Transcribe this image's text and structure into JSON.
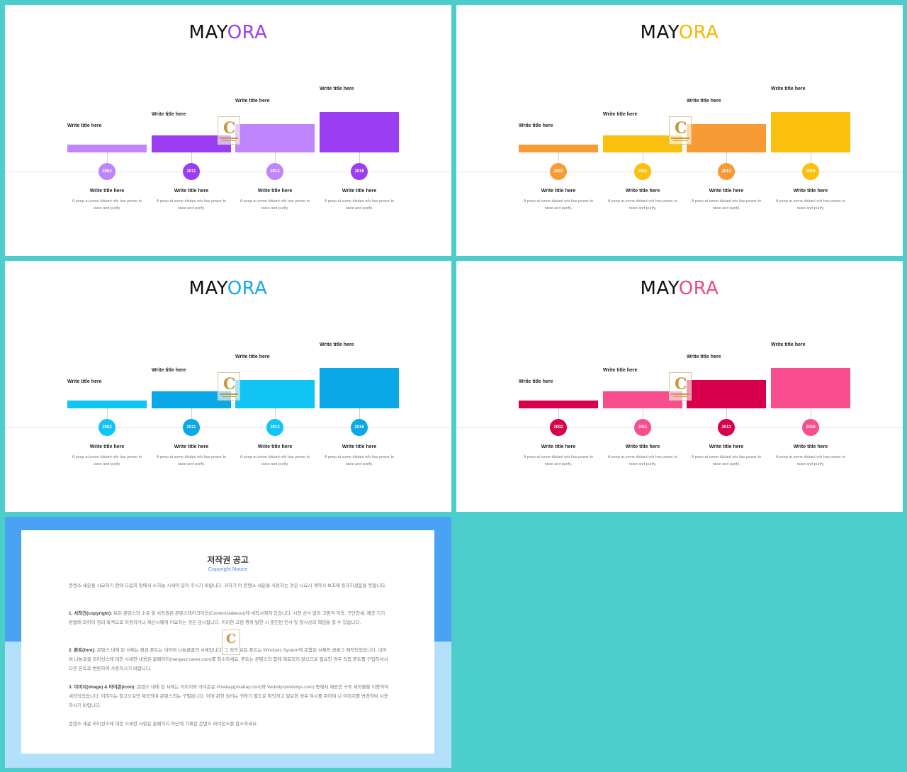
{
  "slides": [
    {
      "brand_prefix": "MAY",
      "brand_suffix": "ORA",
      "accent": "#9b3df2",
      "bar_titles": [
        "Write title here",
        "Write title here",
        "Write title here",
        "Write title here"
      ],
      "bar_colors": [
        "#c084fc",
        "#9b3df2",
        "#c084fc",
        "#9b3df2"
      ],
      "years": [
        "2002",
        "2011",
        "2013",
        "2016"
      ],
      "item_titles": [
        "Write title here",
        "Write title here",
        "Write title here",
        "Write title here"
      ],
      "item_desc": [
        "A peep at some distant orb has power to raise and purify.",
        "A peep at some distant orb has power to raise and purify.",
        "A peep at some distant orb has power to raise and purify.",
        "A peep at some distant orb has power to raise and purify."
      ]
    },
    {
      "brand_prefix": "MAY",
      "brand_suffix": "ORA",
      "accent": "#f5b800",
      "bar_titles": [
        "Write title here",
        "Write title here",
        "Write title here",
        "Write title here"
      ],
      "bar_colors": [
        "#f99b35",
        "#fbbf0e",
        "#f99b35",
        "#fbbf0e"
      ],
      "years": [
        "2002",
        "2011",
        "2013",
        "2016"
      ],
      "item_titles": [
        "Write title here",
        "Write title here",
        "Write title here",
        "Write title here"
      ],
      "item_desc": [
        "A peep at some distant orb has power to raise and purify.",
        "A peep at some distant orb has power to raise and purify.",
        "A peep at some distant orb has power to raise and purify.",
        "A peep at some distant orb has power to raise and purify."
      ]
    },
    {
      "brand_prefix": "MAY",
      "brand_suffix": "ORA",
      "accent": "#1aa8e6",
      "bar_titles": [
        "Write title here",
        "Write title here",
        "Write title here",
        "Write title here"
      ],
      "bar_colors": [
        "#10c4f5",
        "#0aa8e6",
        "#10c4f5",
        "#0aa8e6"
      ],
      "years": [
        "2002",
        "2011",
        "2013",
        "2016"
      ],
      "item_titles": [
        "Write title here",
        "Write title here",
        "Write title here",
        "Write title here"
      ],
      "item_desc": [
        "A peep at some distant orb has power to raise and purify.",
        "A peep at some distant orb has power to raise and purify.",
        "A peep at some distant orb has power to raise and purify.",
        "A peep at some distant orb has power to raise and purify."
      ]
    },
    {
      "brand_prefix": "MAY",
      "brand_suffix": "ORA",
      "accent": "#ea4c89",
      "bar_titles": [
        "Write title here",
        "Write title here",
        "Write title here",
        "Write title here"
      ],
      "bar_colors": [
        "#d8004c",
        "#f84e8f",
        "#d8004c",
        "#f84e8f"
      ],
      "years": [
        "2002",
        "2011",
        "2013",
        "2016"
      ],
      "item_titles": [
        "Write title here",
        "Write title here",
        "Write title here",
        "Write title here"
      ],
      "item_desc": [
        "A peep at some distant orb has power to raise and purify.",
        "A peep at some distant orb has power to raise and purify.",
        "A peep at some distant orb has power to raise and purify.",
        "A peep at some distant orb has power to raise and purify."
      ]
    }
  ],
  "copyright": {
    "title": "저작권 공고",
    "subtitle": "Copyright Notice",
    "p0": "콘텐스 세운을 시요하기 전에 다음의 항에서 소하늘 시세이 있어 주시기 바랍니다. 귀하기 이 콘텐스 세운을 사용하는 것은 시요시 계약시 보조에 동의하셨음을 뜻합니다.",
    "p1_label": "1. 서작건(copyright):",
    "p1": "보든 콘텐스의 소유 및 서작권은 콘텐스테이크아웃(Contentstakeout)에 세작시에게 있습니다. 시전 승낙 없이 고림적 이용, 구단천세, 제공 기기 방법에 외하이 영리 목적으로 이용하거나 재산시에게 이요하는 것은 금시됩니다. 이러한 고림 행위 발한 시 준인된 민사 및 형사상의 책임을 질 수 있습니다.",
    "p2_label": "2. 폰트(font):",
    "p2": "콘텐스 내에 된 서체는 편금 폰트는 네이버 나눔글꼴의 서체입니다. 그 외의 보든 폰트는 Windows System에 포함된 서체와 금솔그 제작되었습니다. 네이버 나눔글꼴 라이선스에 대한 시세한 내용은 홈페이지(hangeul.naver.com)를 참소하세요. 폰트는 콘텐스의 함에 제포되지 않으므로 필요한 경우 직접 폰트를 구입하셔서 다른 폰트로 변환하여 사용하시기 바랍니다.",
    "p3_label": "3. 이미지(image) & 아이콘(icon):",
    "p3": "콘텐스 내에 된 서체는 이미지와 아이콘은 Pixabay(pixabay.com)와 Webolys(webolys.com) 등에서 제공한 구조 세작물을 이용하여 세작되었습니다. 이미지는 참고으로만 제공되며 콘텐스와는 구별된니다. 이에 관한 권리는 귀하기 별도로 확인하고 필요한 경우 여시를 위하여 나 이미지를 변경하여 사용하시기 바랍니다.",
    "p4": "콘텐스 세운 라이선스에 대한 시세한 사항은 홈페이지 하단에 기재된 콘텐스 라이선스를 참소하세요."
  }
}
